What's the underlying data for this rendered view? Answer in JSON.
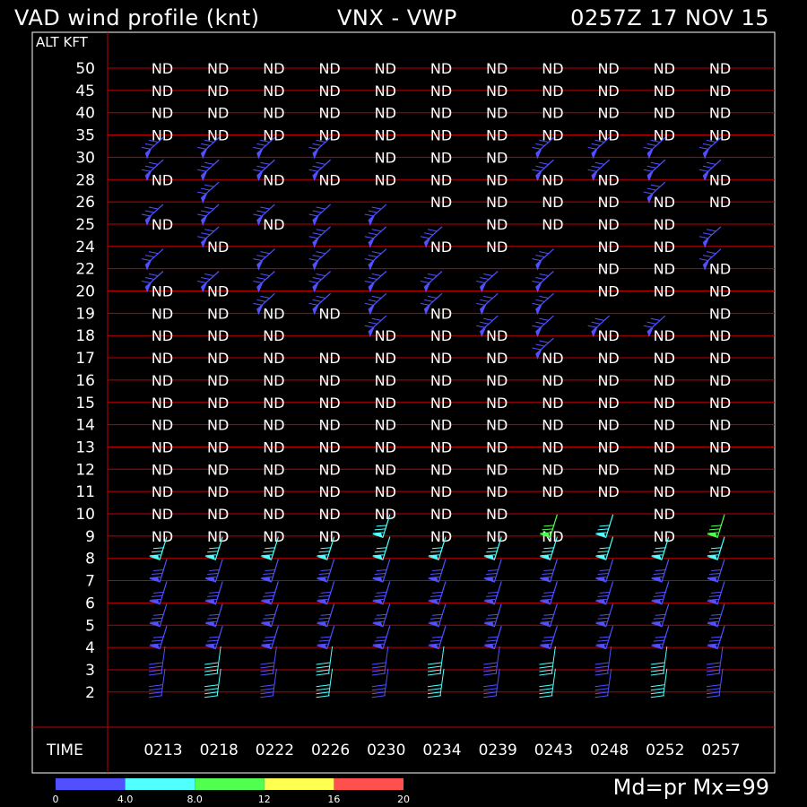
{
  "header": {
    "title": "VAD wind profile (knt)",
    "site": "VNX - VWP",
    "datetime": "0257Z 17 NOV 15"
  },
  "footer": {
    "mode": "Md=pr Mx=99"
  },
  "chart_data": {
    "type": "table",
    "title": "VAD wind profile (knt)",
    "xlabel": "TIME",
    "ylabel": "ALT KFT",
    "altitudes": [
      "50",
      "45",
      "40",
      "35",
      "30",
      "28",
      "26",
      "25",
      "24",
      "22",
      "20",
      "19",
      "18",
      "17",
      "16",
      "15",
      "14",
      "13",
      "12",
      "11",
      "10",
      "9",
      "8",
      "7",
      "6",
      "5",
      "4",
      "3",
      "2"
    ],
    "times": [
      "0213",
      "0218",
      "0222",
      "0226",
      "0230",
      "0234",
      "0239",
      "0243",
      "0248",
      "0252",
      "0257"
    ],
    "nd_label": "ND",
    "nd_cells": {
      "50": [
        0,
        1,
        2,
        3,
        4,
        5,
        6,
        7,
        8,
        9,
        10
      ],
      "45": [
        0,
        1,
        2,
        3,
        4,
        5,
        6,
        7,
        8,
        9,
        10
      ],
      "40": [
        0,
        1,
        2,
        3,
        4,
        5,
        6,
        7,
        8,
        9,
        10
      ],
      "35": [
        0,
        1,
        2,
        3,
        4,
        5,
        6,
        7,
        8,
        9,
        10
      ],
      "30": [
        4,
        5,
        6
      ],
      "28": [
        0,
        2,
        3,
        4,
        5,
        6,
        7,
        8,
        10
      ],
      "26": [
        5,
        6,
        7,
        8,
        9,
        10
      ],
      "25": [
        0,
        2,
        6,
        7,
        8,
        9
      ],
      "24": [
        1,
        5,
        6,
        8,
        9
      ],
      "22": [
        8,
        9,
        10
      ],
      "20": [
        0,
        1,
        8,
        9,
        10
      ],
      "19": [
        0,
        1,
        2,
        3,
        5,
        10
      ],
      "18": [
        0,
        1,
        2,
        4,
        5,
        6,
        8,
        9,
        10
      ],
      "17": [
        0,
        1,
        2,
        3,
        4,
        5,
        6,
        7,
        8,
        9,
        10
      ],
      "16": [
        0,
        1,
        2,
        3,
        4,
        5,
        6,
        7,
        8,
        9,
        10
      ],
      "15": [
        0,
        1,
        2,
        3,
        4,
        5,
        6,
        7,
        8,
        9,
        10
      ],
      "14": [
        0,
        1,
        2,
        3,
        4,
        5,
        6,
        7,
        8,
        9,
        10
      ],
      "13": [
        0,
        1,
        2,
        3,
        4,
        5,
        6,
        7,
        8,
        9,
        10
      ],
      "12": [
        0,
        1,
        2,
        3,
        4,
        5,
        6,
        7,
        8,
        9,
        10
      ],
      "11": [
        0,
        1,
        2,
        3,
        4,
        5,
        6,
        7,
        8,
        9,
        10
      ],
      "10": [
        0,
        1,
        2,
        3,
        4,
        5,
        6,
        9
      ],
      "9": [
        0,
        1,
        2,
        3,
        5,
        6,
        7,
        9
      ]
    },
    "barb_cells": {
      "30": [
        0,
        1,
        2,
        3,
        7,
        8,
        9,
        10
      ],
      "28": [
        0,
        1,
        2,
        3,
        7,
        8,
        9,
        10
      ],
      "26": [
        1,
        9
      ],
      "25": [
        0,
        1,
        2,
        3,
        4
      ],
      "24": [
        1,
        3,
        4,
        5,
        10
      ],
      "22": [
        0,
        2,
        3,
        4,
        7,
        10
      ],
      "20": [
        0,
        1,
        2,
        3,
        4,
        5,
        6,
        7
      ],
      "19": [
        2,
        3,
        4,
        5,
        6,
        7
      ],
      "18": [
        4,
        6,
        7,
        8,
        9
      ],
      "17": [
        7
      ],
      "9": [
        4,
        7,
        8,
        10
      ],
      "8": [
        0,
        1,
        2,
        3,
        4,
        5,
        6,
        7,
        8,
        9,
        10
      ],
      "7": [
        0,
        1,
        2,
        3,
        4,
        5,
        6,
        7,
        8,
        9,
        10
      ],
      "6": [
        0,
        1,
        2,
        3,
        4,
        5,
        6,
        7,
        8,
        9,
        10
      ],
      "5": [
        0,
        1,
        2,
        3,
        4,
        5,
        6,
        7,
        8,
        9,
        10
      ],
      "4": [
        0,
        1,
        2,
        3,
        4,
        5,
        6,
        7,
        8,
        9,
        10
      ],
      "3": [
        0,
        1,
        2,
        3,
        4,
        5,
        6,
        7,
        8,
        9,
        10
      ],
      "2": [
        0,
        1,
        2,
        3,
        4,
        5,
        6,
        7,
        8,
        9,
        10
      ]
    },
    "color_scale": {
      "labels": [
        "0",
        "4.0",
        "8.0",
        "12",
        "16",
        "20"
      ],
      "colors": [
        "#5050ff",
        "#50ffff",
        "#50ff50",
        "#ffff50",
        "#ff5050"
      ]
    },
    "grid_color": "#c00000"
  }
}
